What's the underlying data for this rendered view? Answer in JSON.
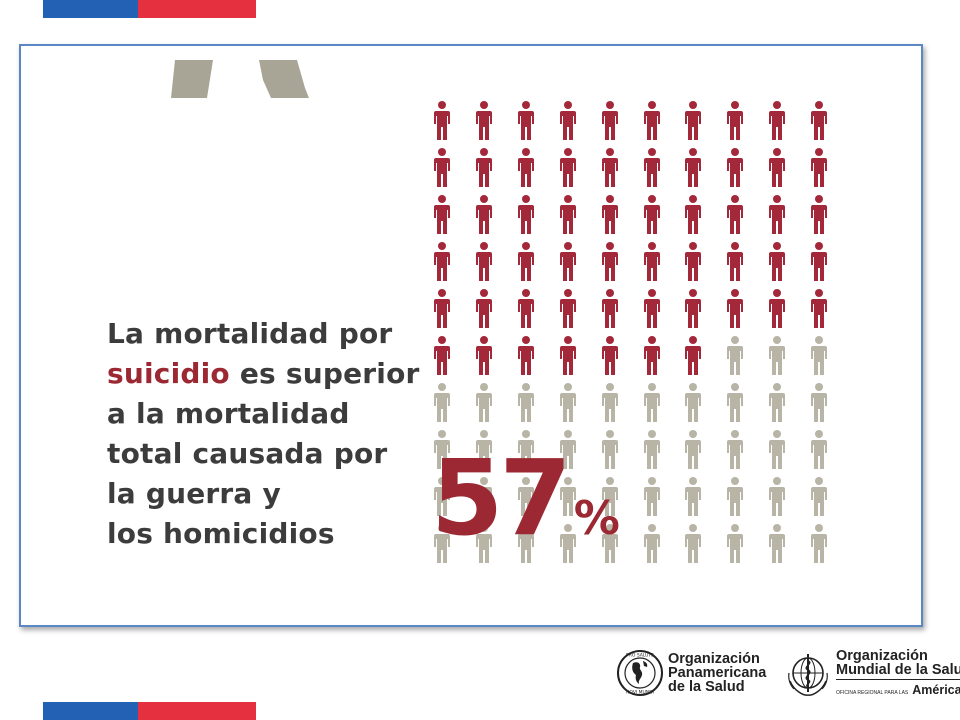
{
  "slide": {
    "headline": {
      "line1": "La mortalidad por",
      "line2_accent": "suicidio",
      "line2_rest": " es superior",
      "line3": "a la mortalidad",
      "line4": "total causada por",
      "line5": "la guerra y",
      "line6": "los homicidios"
    },
    "pictogram": {
      "rows": 10,
      "columns": 10,
      "highlighted_count": 57,
      "highlight_color": "#a3283a",
      "base_color": "#b8b4a6"
    },
    "percent": {
      "value": "57",
      "sign": "%"
    }
  },
  "logos": {
    "ops": {
      "line1": "Organización",
      "line2": "Panamericana",
      "line3": "de la Salud"
    },
    "oms": {
      "line1": "Organización",
      "line2": "Mundial de la Salud",
      "small": "OFICINA REGIONAL PARA LAS",
      "big": "Américas"
    }
  },
  "colors": {
    "flag_blue": "#2261b4",
    "flag_red": "#e5313f",
    "accent_red": "#9b2832",
    "frame_border": "#5b87c4"
  }
}
